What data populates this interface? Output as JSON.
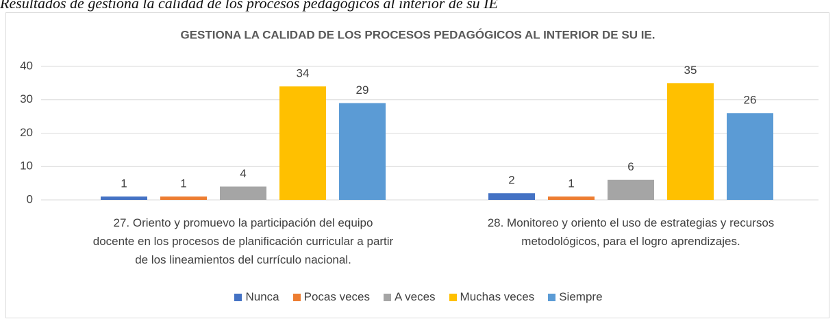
{
  "caption": "Resultados de gestiona la calidad de los procesos pedagógicos al interior de su IE",
  "chart_data": {
    "type": "bar",
    "title": "GESTIONA LA CALIDAD DE LOS PROCESOS PEDAGÓGICOS AL INTERIOR DE SU IE.",
    "categories": [
      "27.  Oriento y promuevo la participación del equipo docente en los procesos de planificación curricular a partir de los lineamientos del currículo nacional.",
      "28.  Monitoreo y oriento el uso de estrategias y recursos metodológicos, para el logro aprendizajes."
    ],
    "series": [
      {
        "name": "Nunca",
        "color": "#4472c4",
        "values": [
          1,
          2
        ]
      },
      {
        "name": "Pocas veces",
        "color": "#ed7d31",
        "values": [
          1,
          1
        ]
      },
      {
        "name": "A veces",
        "color": "#a5a5a5",
        "values": [
          4,
          6
        ]
      },
      {
        "name": "Muchas veces",
        "color": "#ffc000",
        "values": [
          34,
          35
        ]
      },
      {
        "name": "Siempre",
        "color": "#5b9bd5",
        "values": [
          29,
          26
        ]
      }
    ],
    "ylim": [
      0,
      40
    ],
    "yticks": [
      0,
      10,
      20,
      30,
      40
    ],
    "grid": true,
    "legend": "bottom"
  }
}
